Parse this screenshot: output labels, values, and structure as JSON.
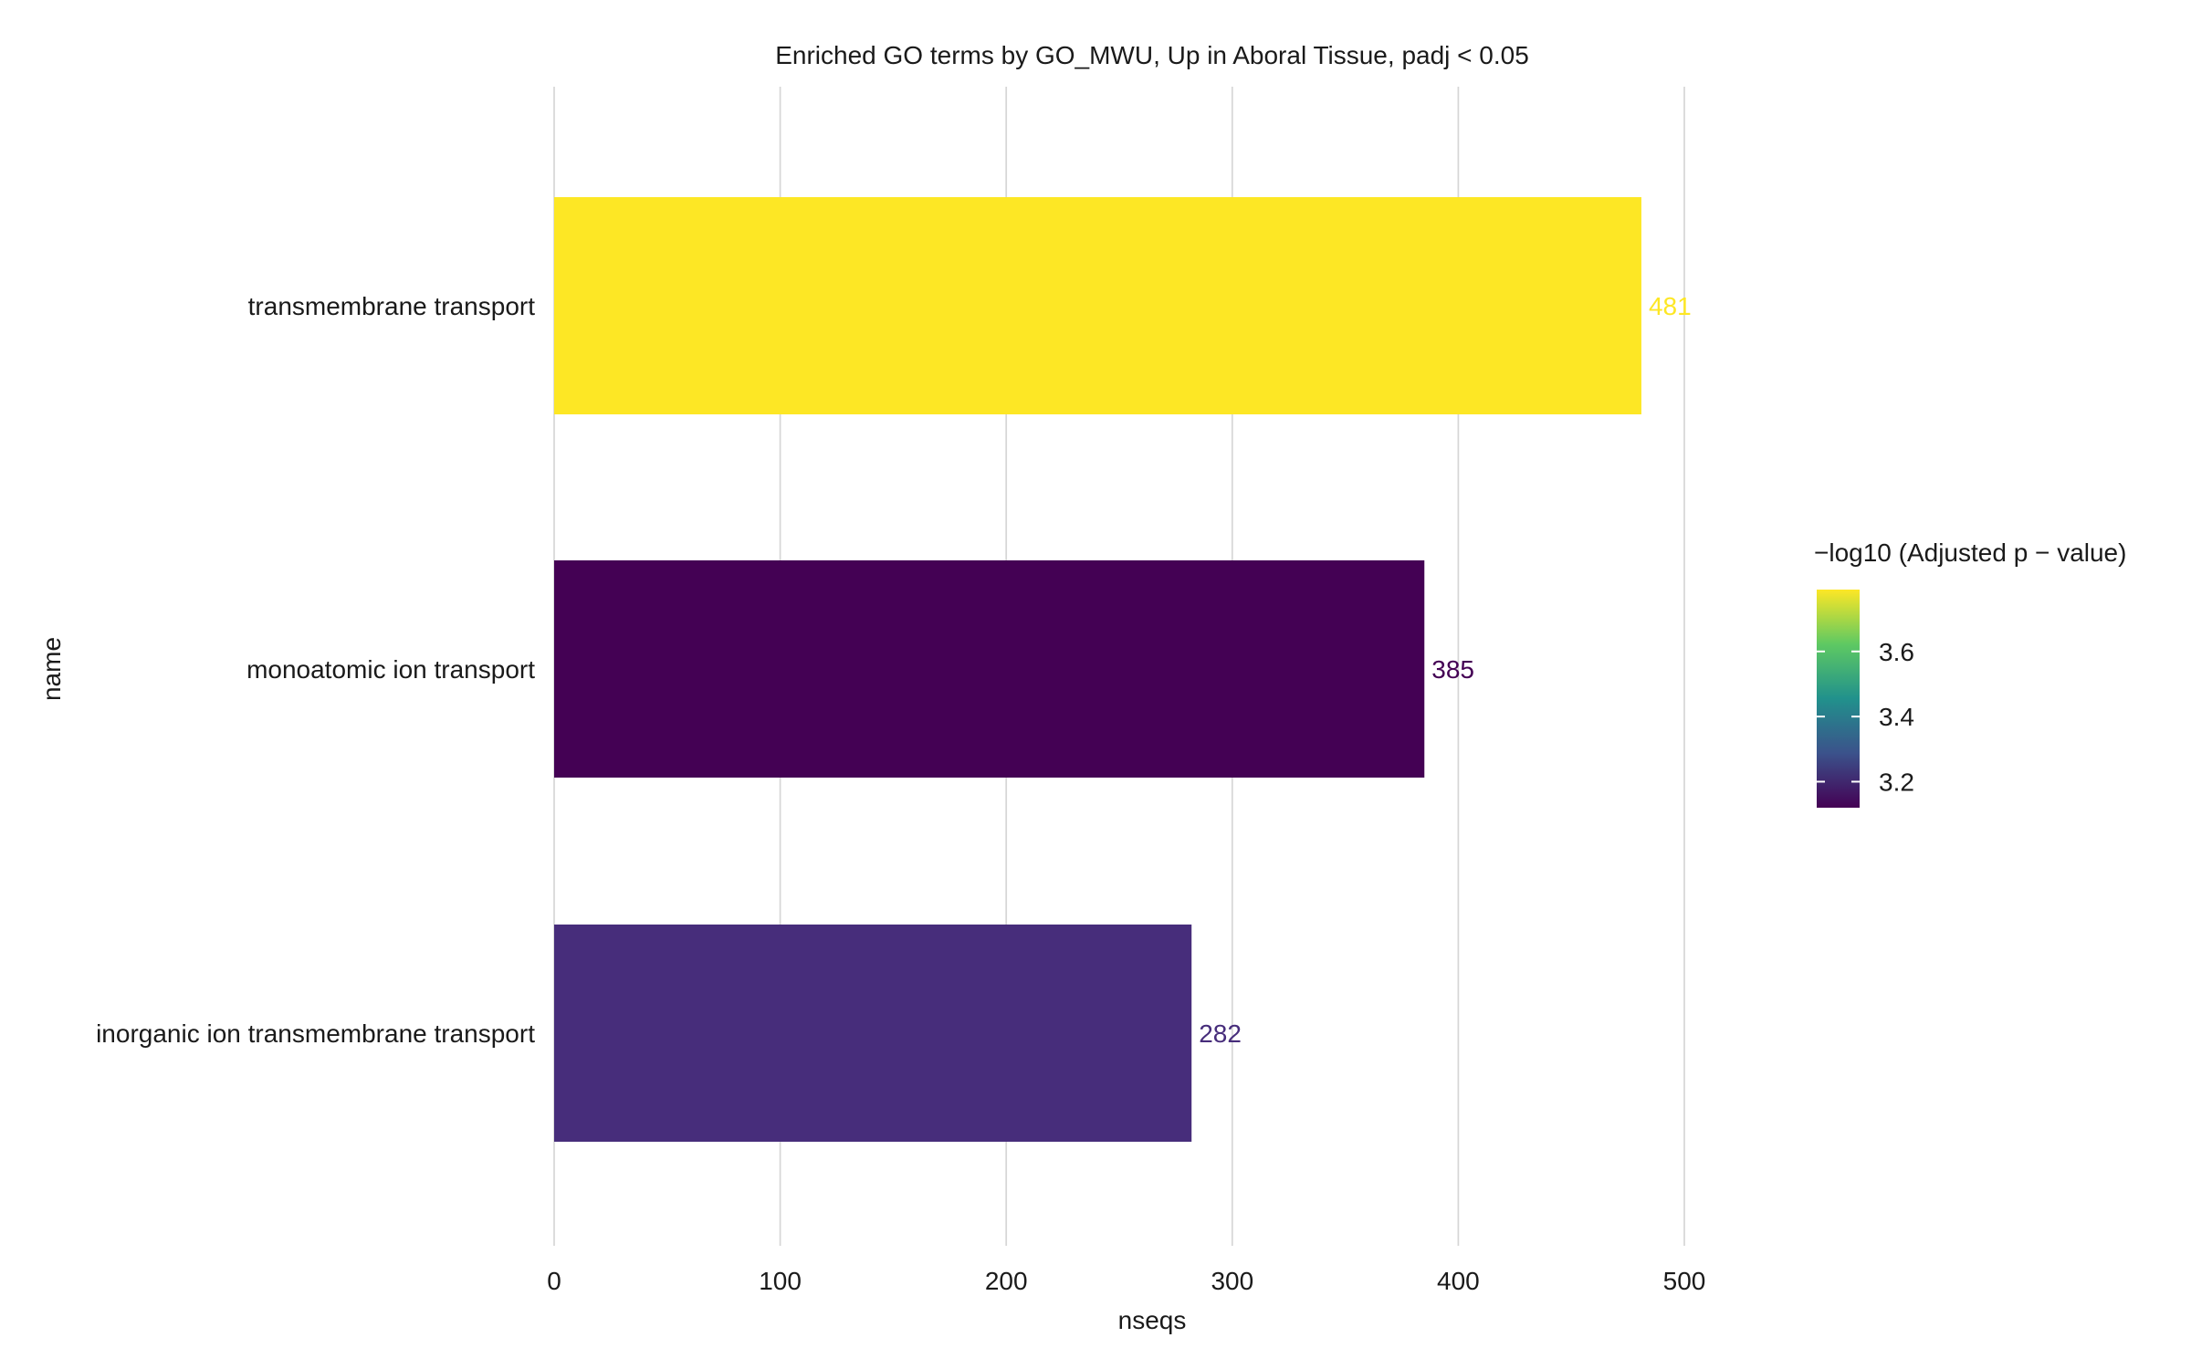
{
  "chart_data": {
    "type": "bar",
    "orientation": "horizontal",
    "title": "Enriched GO terms by GO_MWU, Up in Aboral Tissue, padj < 0.05",
    "xlabel": "nseqs",
    "ylabel": "name",
    "xlim": [
      0,
      540
    ],
    "xticks": [
      0,
      100,
      200,
      300,
      400,
      500
    ],
    "grid": "vertical",
    "categories": [
      "transmembrane transport",
      "monoatomic ion transport",
      "inorganic ion transmembrane transport"
    ],
    "values": [
      481,
      385,
      282
    ],
    "color_values": [
      3.79,
      3.12,
      3.21
    ],
    "bar_colors": [
      "#fde725",
      "#440154",
      "#472d7b"
    ],
    "data_labels": [
      "481",
      "385",
      "282"
    ],
    "legend": {
      "title": "−log10 (Adjusted p − value)",
      "position": "right",
      "range": [
        3.12,
        3.79
      ],
      "ticks": [
        3.2,
        3.4,
        3.6
      ],
      "tick_labels": [
        "3.2",
        "3.4",
        "3.6"
      ],
      "colormap": [
        "#440154",
        "#3b528b",
        "#21918c",
        "#5ec962",
        "#fde725"
      ]
    }
  }
}
